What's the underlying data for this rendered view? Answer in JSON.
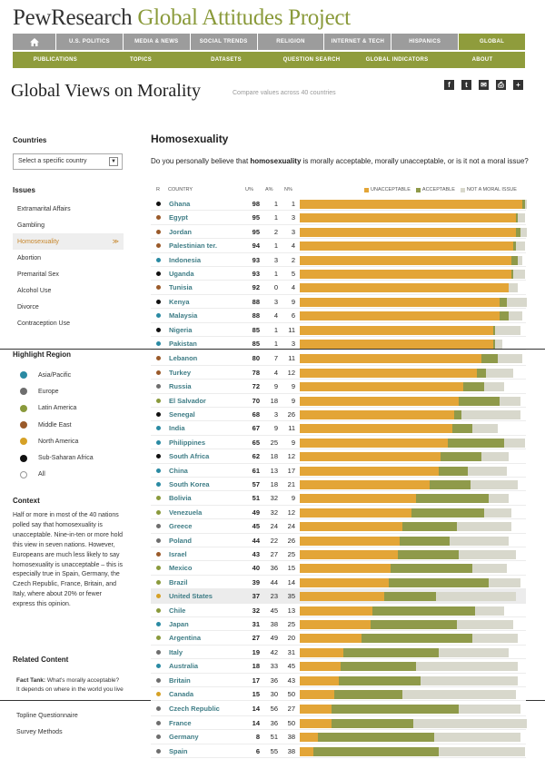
{
  "header": {
    "logo_pew": "PewResearch",
    "logo_project": "Global Attitudes Project",
    "nav_primary": [
      "U.S. POLITICS",
      "MEDIA & NEWS",
      "SOCIAL TRENDS",
      "RELIGION",
      "INTERNET & TECH",
      "HISPANICS",
      "GLOBAL"
    ],
    "nav_secondary": [
      "PUBLICATIONS",
      "TOPICS",
      "DATASETS",
      "QUESTION SEARCH",
      "GLOBAL INDICATORS",
      "ABOUT"
    ]
  },
  "page": {
    "title": "Global Views on Morality",
    "subtitle": "Compare values across 40 countries",
    "share_icons": [
      "f",
      "t",
      "✉",
      "⎙",
      "+"
    ]
  },
  "sidebar": {
    "countries_head": "Countries",
    "country_select": "Select a specific country",
    "issues_head": "Issues",
    "issues": [
      "Extramarital Affairs",
      "Gambling",
      "Homosexuality",
      "Abortion",
      "Premarital Sex",
      "Alcohol Use",
      "Divorce",
      "Contraception Use"
    ],
    "active_issue_arrow": "≫",
    "highlight_head": "Highlight Region",
    "regions": [
      {
        "label": "Asia/Pacific",
        "color": "#2a8aa3"
      },
      {
        "label": "Europe",
        "color": "#6e6e6e"
      },
      {
        "label": "Latin America",
        "color": "#8a9a3c"
      },
      {
        "label": "Middle East",
        "color": "#9a5a2a"
      },
      {
        "label": "North America",
        "color": "#d6a126"
      },
      {
        "label": "Sub-Saharan Africa",
        "color": "#111111"
      },
      {
        "label": "All",
        "color": "#ffffff"
      }
    ],
    "context_head": "Context",
    "context_text": "Half or more in most of the 40 nations polled say that homosexuality is unacceptable. Nine-in-ten or more hold this view in seven nations. However, Europeans are much less likely to say homosexuality is unacceptable – this is especially true in Spain, Germany, the Czech Republic, France, Britain, and Italy, where about 20% or fewer express this opinion.",
    "related_head": "Related Content",
    "related_bold": "Fact Tank:",
    "related_text": " What's morally acceptable? It depends on where in the world you live",
    "topline": "Topline Questionnaire",
    "survey": "Survey Methods"
  },
  "main": {
    "issue_title": "Homosexuality",
    "question_pre": "Do you personally believe that ",
    "question_bold": "homosexuality",
    "question_post": " is morally acceptable, morally unacceptable, or is it not a moral issue?",
    "col_r": "R",
    "col_country": "COUNTRY",
    "col_u": "U%",
    "col_a": "A%",
    "col_n": "N%",
    "legend_unacceptable": "UNACCEPTABLE",
    "legend_acceptable": "ACCEPTABLE",
    "legend_not_moral": "NOT A MORAL ISSUE"
  },
  "colors": {
    "unacceptable": "#e3a537",
    "acceptable": "#8f9a4a",
    "not_moral": "#d8d8cc",
    "country_text": "#3f7d86"
  },
  "chart_data": {
    "type": "bar",
    "title": "Homosexuality",
    "series": [
      {
        "name": "UNACCEPTABLE",
        "key": "u"
      },
      {
        "name": "ACCEPTABLE",
        "key": "a"
      },
      {
        "name": "NOT A MORAL ISSUE",
        "key": "n"
      }
    ],
    "rows": [
      {
        "country": "Ghana",
        "region": "Sub-Saharan Africa",
        "u": 98,
        "a": 1,
        "n": 1
      },
      {
        "country": "Egypt",
        "region": "Middle East",
        "u": 95,
        "a": 1,
        "n": 3
      },
      {
        "country": "Jordan",
        "region": "Middle East",
        "u": 95,
        "a": 2,
        "n": 3
      },
      {
        "country": "Palestinian ter.",
        "region": "Middle East",
        "u": 94,
        "a": 1,
        "n": 4
      },
      {
        "country": "Indonesia",
        "region": "Asia/Pacific",
        "u": 93,
        "a": 3,
        "n": 2
      },
      {
        "country": "Uganda",
        "region": "Sub-Saharan Africa",
        "u": 93,
        "a": 1,
        "n": 5
      },
      {
        "country": "Tunisia",
        "region": "Middle East",
        "u": 92,
        "a": 0,
        "n": 4
      },
      {
        "country": "Kenya",
        "region": "Sub-Saharan Africa",
        "u": 88,
        "a": 3,
        "n": 9
      },
      {
        "country": "Malaysia",
        "region": "Asia/Pacific",
        "u": 88,
        "a": 4,
        "n": 6
      },
      {
        "country": "Nigeria",
        "region": "Sub-Saharan Africa",
        "u": 85,
        "a": 1,
        "n": 11
      },
      {
        "country": "Pakistan",
        "region": "Asia/Pacific",
        "u": 85,
        "a": 1,
        "n": 3
      },
      {
        "country": "Lebanon",
        "region": "Middle East",
        "u": 80,
        "a": 7,
        "n": 11
      },
      {
        "country": "Turkey",
        "region": "Middle East",
        "u": 78,
        "a": 4,
        "n": 12
      },
      {
        "country": "Russia",
        "region": "Europe",
        "u": 72,
        "a": 9,
        "n": 9
      },
      {
        "country": "El Salvador",
        "region": "Latin America",
        "u": 70,
        "a": 18,
        "n": 9
      },
      {
        "country": "Senegal",
        "region": "Sub-Saharan Africa",
        "u": 68,
        "a": 3,
        "n": 26
      },
      {
        "country": "India",
        "region": "Asia/Pacific",
        "u": 67,
        "a": 9,
        "n": 11
      },
      {
        "country": "Philippines",
        "region": "Asia/Pacific",
        "u": 65,
        "a": 25,
        "n": 9
      },
      {
        "country": "South Africa",
        "region": "Sub-Saharan Africa",
        "u": 62,
        "a": 18,
        "n": 12
      },
      {
        "country": "China",
        "region": "Asia/Pacific",
        "u": 61,
        "a": 13,
        "n": 17
      },
      {
        "country": "South Korea",
        "region": "Asia/Pacific",
        "u": 57,
        "a": 18,
        "n": 21
      },
      {
        "country": "Bolivia",
        "region": "Latin America",
        "u": 51,
        "a": 32,
        "n": 9
      },
      {
        "country": "Venezuela",
        "region": "Latin America",
        "u": 49,
        "a": 32,
        "n": 12
      },
      {
        "country": "Greece",
        "region": "Europe",
        "u": 45,
        "a": 24,
        "n": 24
      },
      {
        "country": "Poland",
        "region": "Europe",
        "u": 44,
        "a": 22,
        "n": 26
      },
      {
        "country": "Israel",
        "region": "Middle East",
        "u": 43,
        "a": 27,
        "n": 25
      },
      {
        "country": "Mexico",
        "region": "Latin America",
        "u": 40,
        "a": 36,
        "n": 15
      },
      {
        "country": "Brazil",
        "region": "Latin America",
        "u": 39,
        "a": 44,
        "n": 14
      },
      {
        "country": "United States",
        "region": "North America",
        "u": 37,
        "a": 23,
        "n": 35
      },
      {
        "country": "Chile",
        "region": "Latin America",
        "u": 32,
        "a": 45,
        "n": 13
      },
      {
        "country": "Japan",
        "region": "Asia/Pacific",
        "u": 31,
        "a": 38,
        "n": 25
      },
      {
        "country": "Argentina",
        "region": "Latin America",
        "u": 27,
        "a": 49,
        "n": 20
      },
      {
        "country": "Italy",
        "region": "Europe",
        "u": 19,
        "a": 42,
        "n": 31
      },
      {
        "country": "Australia",
        "region": "Asia/Pacific",
        "u": 18,
        "a": 33,
        "n": 45
      },
      {
        "country": "Britain",
        "region": "Europe",
        "u": 17,
        "a": 36,
        "n": 43
      },
      {
        "country": "Canada",
        "region": "North America",
        "u": 15,
        "a": 30,
        "n": 50
      },
      {
        "country": "Czech Republic",
        "region": "Europe",
        "u": 14,
        "a": 56,
        "n": 27
      },
      {
        "country": "France",
        "region": "Europe",
        "u": 14,
        "a": 36,
        "n": 50
      },
      {
        "country": "Germany",
        "region": "Europe",
        "u": 8,
        "a": 51,
        "n": 38
      },
      {
        "country": "Spain",
        "region": "Europe",
        "u": 6,
        "a": 55,
        "n": 38
      }
    ],
    "highlighted_row": "United States"
  }
}
